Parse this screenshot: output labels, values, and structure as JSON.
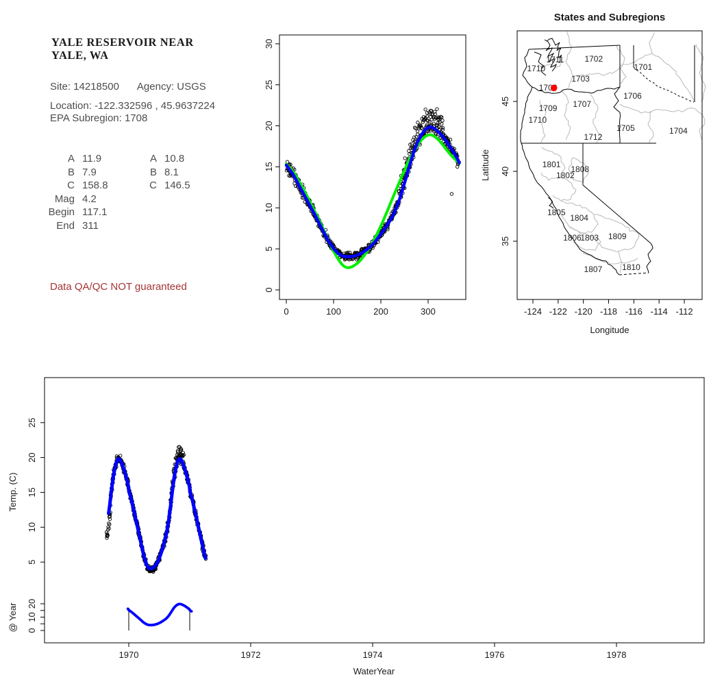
{
  "info_panel": {
    "title_line1": "YALE RESERVOIR NEAR",
    "title_line2": "YALE, WA",
    "site_line": "Site: 14218500",
    "agency_line": "Agency: USGS",
    "location_line": "Location: -122.332596 , 45.9637224",
    "epa_line": "EPA Subregion: 1708",
    "params": {
      "rows": [
        {
          "label": "A",
          "value": "11.9",
          "label2": "A",
          "value2": "10.8"
        },
        {
          "label": "B",
          "value": "7.9",
          "label2": "B",
          "value2": "8.1"
        },
        {
          "label": "C",
          "value": "158.8",
          "label2": "C",
          "value2": "146.5"
        },
        {
          "label": "Mag",
          "value": "4.2",
          "label2": "",
          "value2": ""
        },
        {
          "label": "Begin",
          "value": "117.1",
          "label2": "",
          "value2": ""
        },
        {
          "label": "End",
          "value": "311",
          "label2": "",
          "value2": ""
        }
      ]
    },
    "warning": "Data QA/QC NOT guaranteed"
  },
  "colors": {
    "fit_blue": "#0000ff",
    "fit_green": "#00ee00",
    "point_stroke": "#000000",
    "state_line": "#000000",
    "subregion_line": "#bdbdbd",
    "station_dot": "#ff0000",
    "warning_text": "#a53434"
  },
  "chart_data": [
    {
      "type": "scatter",
      "name": "seasonal-fit",
      "title": "",
      "xlabel": "",
      "ylabel": "",
      "x_ticks": [
        0,
        100,
        200,
        300
      ],
      "y_ticks": [
        0,
        5,
        10,
        15,
        20,
        25,
        30
      ],
      "xlim": [
        -15,
        380
      ],
      "ylim": [
        -1.1,
        31.1
      ],
      "legend": "none",
      "grid": false,
      "fit_blue_params": {
        "A": 11.9,
        "B": 7.9,
        "C": 158.8,
        "Mag": 4.2,
        "Begin": 117.1,
        "End": 311
      },
      "fit_green_params": {
        "A": 10.8,
        "B": 8.1,
        "C": 146.5
      },
      "blue_curve": [
        [
          0,
          15.2
        ],
        [
          15,
          14.0
        ],
        [
          30,
          12.4
        ],
        [
          45,
          10.8
        ],
        [
          60,
          9.2
        ],
        [
          75,
          7.5
        ],
        [
          90,
          5.9
        ],
        [
          105,
          4.7
        ],
        [
          118,
          4.15
        ],
        [
          130,
          4.05
        ],
        [
          142,
          4.1
        ],
        [
          155,
          4.35
        ],
        [
          170,
          4.9
        ],
        [
          185,
          5.7
        ],
        [
          200,
          6.8
        ],
        [
          212,
          7.8
        ],
        [
          225,
          9.0
        ],
        [
          238,
          10.8
        ],
        [
          250,
          13.0
        ],
        [
          262,
          15.4
        ],
        [
          272,
          17.2
        ],
        [
          282,
          18.5
        ],
        [
          292,
          19.4
        ],
        [
          302,
          19.85
        ],
        [
          312,
          19.7
        ],
        [
          322,
          19.25
        ],
        [
          335,
          18.4
        ],
        [
          348,
          17.3
        ],
        [
          358,
          16.4
        ],
        [
          366,
          15.5
        ]
      ],
      "green_curve": [
        [
          0,
          15.35
        ],
        [
          15,
          14.35
        ],
        [
          30,
          12.9
        ],
        [
          45,
          11.3
        ],
        [
          60,
          9.6
        ],
        [
          75,
          7.8
        ],
        [
          90,
          5.9
        ],
        [
          105,
          4.2
        ],
        [
          118,
          3.1
        ],
        [
          128,
          2.72
        ],
        [
          140,
          2.85
        ],
        [
          155,
          3.5
        ],
        [
          170,
          4.6
        ],
        [
          185,
          6.0
        ],
        [
          200,
          7.8
        ],
        [
          215,
          9.8
        ],
        [
          230,
          11.9
        ],
        [
          245,
          13.9
        ],
        [
          258,
          15.6
        ],
        [
          270,
          16.9
        ],
        [
          282,
          18.0
        ],
        [
          294,
          18.7
        ],
        [
          305,
          18.9
        ],
        [
          316,
          18.6
        ],
        [
          328,
          17.9
        ],
        [
          340,
          17.0
        ],
        [
          352,
          16.2
        ],
        [
          366,
          15.45
        ]
      ],
      "points_model": {
        "seed": 42,
        "day_min": 1,
        "day_max": 365,
        "per_day": 2,
        "sd_early": 0.8,
        "sd_mid": 0.5,
        "sd_spread": 0.9,
        "sd_late": 0.7,
        "spread_range": [
          238,
          332
        ],
        "spread_extra": 1.8
      },
      "outliers": [
        [
          350,
          11.7
        ]
      ]
    },
    {
      "type": "map",
      "name": "states-and-subregions",
      "title": "States and Subregions",
      "xlabel": "Longitude",
      "ylabel": "Latitude",
      "x_ticks": [
        -124,
        -122,
        -120,
        -118,
        -116,
        -114,
        -112
      ],
      "y_ticks": [
        35,
        40,
        45
      ],
      "xlim": [
        -125.3,
        -110.5
      ],
      "ylim": [
        30.8,
        50.1
      ],
      "station": {
        "lon": -122.332596,
        "lat": 45.9637224
      },
      "region_labels": [
        {
          "code": "1711",
          "lon": -122.25,
          "lat": 47.99
        },
        {
          "code": "1710",
          "lon": -123.74,
          "lat": 47.35
        },
        {
          "code": "1702",
          "lon": -119.18,
          "lat": 48.04
        },
        {
          "code": "1701",
          "lon": -115.27,
          "lat": 47.45
        },
        {
          "code": "1703",
          "lon": -120.22,
          "lat": 46.62
        },
        {
          "code": "1708",
          "lon": -122.8,
          "lat": 45.98
        },
        {
          "code": "1706",
          "lon": -116.1,
          "lat": 45.39
        },
        {
          "code": "1707",
          "lon": -120.11,
          "lat": 44.8
        },
        {
          "code": "1709",
          "lon": -122.8,
          "lat": 44.51
        },
        {
          "code": "1710",
          "lon": -123.63,
          "lat": 43.68
        },
        {
          "code": "1705",
          "lon": -116.65,
          "lat": 43.09
        },
        {
          "code": "1704",
          "lon": -112.47,
          "lat": 42.89
        },
        {
          "code": "1712",
          "lon": -119.23,
          "lat": 42.45
        },
        {
          "code": "1801",
          "lon": -122.53,
          "lat": 40.49
        },
        {
          "code": "1808",
          "lon": -120.27,
          "lat": 40.15
        },
        {
          "code": "1802",
          "lon": -121.43,
          "lat": 39.71
        },
        {
          "code": "1805",
          "lon": -122.14,
          "lat": 37.06
        },
        {
          "code": "1804",
          "lon": -120.33,
          "lat": 36.67
        },
        {
          "code": "1806",
          "lon": -120.88,
          "lat": 35.25
        },
        {
          "code": "1803",
          "lon": -119.51,
          "lat": 35.25
        },
        {
          "code": "1809",
          "lon": -117.31,
          "lat": 35.34
        },
        {
          "code": "1807",
          "lon": -119.23,
          "lat": 32.99
        },
        {
          "code": "1810",
          "lon": -116.21,
          "lat": 33.14
        }
      ]
    },
    {
      "type": "scatter",
      "name": "temperature-timeseries",
      "title": "",
      "xlabel": "WaterYear",
      "ylabel": "Temp. (C)",
      "ylabel_inset": "@ Year",
      "x_ticks": [
        1970,
        1972,
        1974,
        1976,
        1978
      ],
      "y_ticks_main": [
        5,
        10,
        15,
        20,
        25
      ],
      "y_ticks_inset_all": [
        0,
        5,
        10,
        15,
        20
      ],
      "y_ticks_inset_labeled": [
        0,
        10,
        20
      ],
      "xlim": [
        1968.62,
        1979.44
      ],
      "data_start_year": 1969.64,
      "data_end_year": 1971.26,
      "curve_start_year": 1969.67,
      "inset_window": [
        1970,
        1971
      ],
      "points_model": {
        "seed": 77,
        "count": 560,
        "sd_base": 0.5,
        "sd_min_region": 0.42,
        "early_drop_max": 2.6,
        "warm_peak_extra": 2.3
      }
    }
  ]
}
